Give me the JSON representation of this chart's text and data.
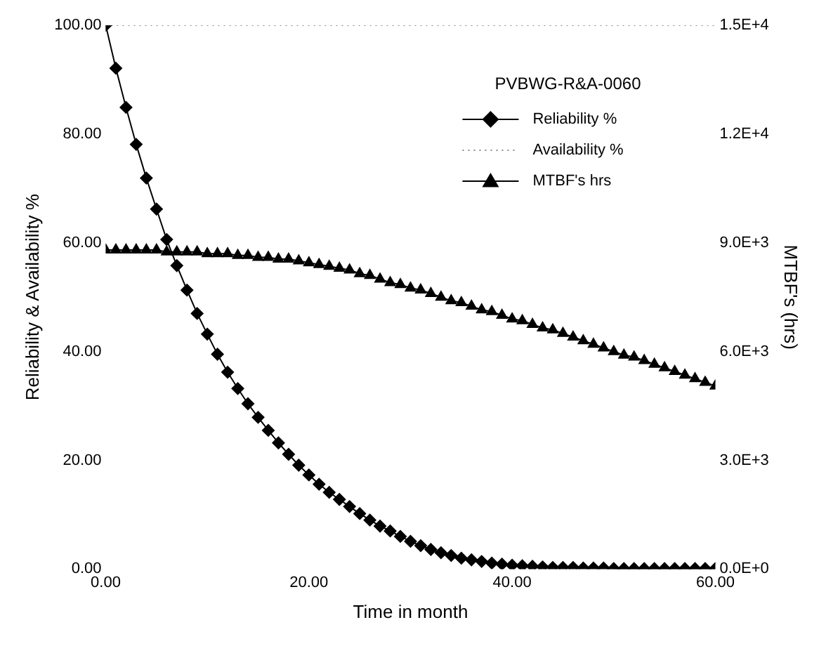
{
  "chart_data": {
    "type": "line",
    "xlabel": "Time in month",
    "ylabel": "Reliability & Availability %",
    "y2label": "MTBF's (hrs)",
    "legend_title": "PVBWG-R&A-0060",
    "legend": "top right",
    "grid": false,
    "x": [
      0,
      1,
      2,
      3,
      4,
      5,
      6,
      7,
      8,
      9,
      10,
      11,
      12,
      13,
      14,
      15,
      16,
      17,
      18,
      19,
      20,
      21,
      22,
      23,
      24,
      25,
      26,
      27,
      28,
      29,
      30,
      31,
      32,
      33,
      34,
      35,
      36,
      37,
      38,
      39,
      40,
      41,
      42,
      43,
      44,
      45,
      46,
      47,
      48,
      49,
      50,
      51,
      52,
      53,
      54,
      55,
      56,
      57,
      58,
      59,
      60
    ],
    "xlim": [
      0,
      60
    ],
    "xticks": [
      {
        "value": 0,
        "label": "0.00"
      },
      {
        "value": 20,
        "label": "20.00"
      },
      {
        "value": 40,
        "label": "40.00"
      },
      {
        "value": 60,
        "label": "60.00"
      }
    ],
    "ylim": [
      0,
      100
    ],
    "yticks": [
      {
        "value": 0,
        "label": "0.00"
      },
      {
        "value": 20,
        "label": "20.00"
      },
      {
        "value": 40,
        "label": "40.00"
      },
      {
        "value": 60,
        "label": "60.00"
      },
      {
        "value": 80,
        "label": "80.00"
      },
      {
        "value": 100,
        "label": "100.00"
      }
    ],
    "y2lim": [
      0,
      15000
    ],
    "y2ticks": [
      {
        "value": 0,
        "label": "0.0E+0"
      },
      {
        "value": 3000,
        "label": "3.0E+3"
      },
      {
        "value": 6000,
        "label": "6.0E+3"
      },
      {
        "value": 9000,
        "label": "9.0E+3"
      },
      {
        "value": 12000,
        "label": "1.2E+4"
      },
      {
        "value": 15000,
        "label": "1.5E+4"
      }
    ],
    "series": [
      {
        "name": "Reliability %",
        "color": "#000000",
        "marker": "diamond",
        "values": [
          100,
          92.1,
          84.9,
          78.1,
          71.9,
          66.2,
          60.6,
          55.8,
          51.3,
          47.0,
          43.2,
          39.5,
          36.2,
          33.2,
          30.4,
          27.9,
          25.5,
          23.2,
          21.1,
          19.1,
          17.3,
          15.6,
          14.1,
          12.8,
          11.5,
          10.2,
          9.0,
          7.9,
          7.0,
          6.0,
          5.1,
          4.3,
          3.6,
          3.0,
          2.5,
          2.0,
          1.7,
          1.4,
          1.1,
          0.9,
          0.7,
          0.6,
          0.5,
          0.4,
          0.3,
          0.3,
          0.3,
          0.2,
          0.2,
          0.2,
          0.1,
          0.1,
          0.1,
          0.1,
          0.1,
          0.1,
          0.1,
          0.1,
          0.1,
          0.1,
          0.1
        ]
      },
      {
        "name": "Availability %",
        "color": "#888888",
        "marker": "none",
        "line_style": "dotted",
        "x": [
          0,
          60
        ],
        "values": [
          100,
          100
        ]
      },
      {
        "name": "MTBF's hrs",
        "color": "#000000",
        "marker": "triangle",
        "axis": "y2",
        "values": [
          8800,
          8800,
          8800,
          8800,
          8800,
          8800,
          8750,
          8750,
          8750,
          8750,
          8700,
          8700,
          8700,
          8650,
          8650,
          8600,
          8600,
          8550,
          8550,
          8500,
          8450,
          8400,
          8350,
          8300,
          8250,
          8150,
          8100,
          8000,
          7900,
          7850,
          7750,
          7700,
          7600,
          7500,
          7400,
          7350,
          7250,
          7150,
          7100,
          7000,
          6900,
          6850,
          6750,
          6650,
          6600,
          6500,
          6400,
          6300,
          6200,
          6100,
          6000,
          5900,
          5850,
          5750,
          5650,
          5550,
          5450,
          5350,
          5250,
          5150,
          5050
        ]
      }
    ]
  }
}
